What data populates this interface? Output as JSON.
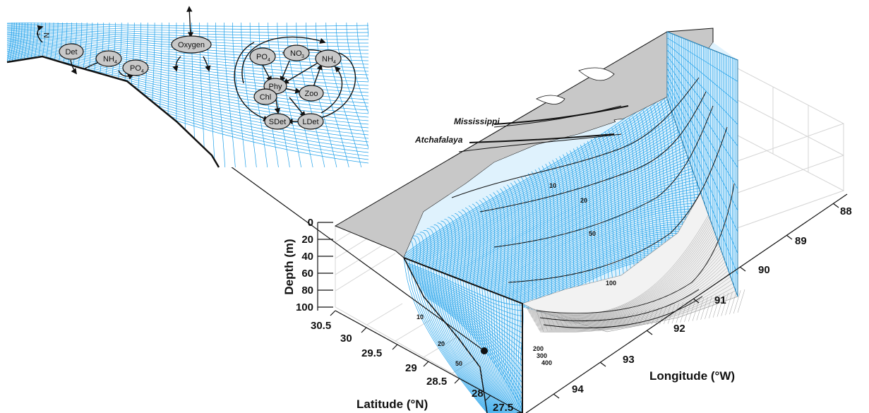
{
  "colors": {
    "grid": "#1ea0ea",
    "land": "#c8c8c8",
    "node_fill": "#c8c8c8",
    "black": "#111111",
    "box_grid": "#cfcfcf"
  },
  "inset": {
    "gas_label": "N",
    "gas_sub": "2",
    "nodes": {
      "det": "Det",
      "nh4_left": {
        "main": "NH",
        "sub": "4"
      },
      "po4_left": {
        "main": "PO",
        "sub": "4"
      },
      "oxygen": "Oxygen",
      "po4": {
        "main": "PO",
        "sub": "4"
      },
      "no3": {
        "main": "NO",
        "sub": "3"
      },
      "nh4": {
        "main": "NH",
        "sub": "4"
      },
      "phy": "Phy",
      "chl": "Chl",
      "zoo": "Zoo",
      "sdet": "SDet",
      "ldet": "LDet"
    }
  },
  "map": {
    "rivers": {
      "mississippi": "Mississippi",
      "atchafalaya": "Atchafalaya"
    },
    "contours_shelf": [
      "10",
      "20",
      "50",
      "100"
    ],
    "contours_deep": [
      "200",
      "300",
      "400"
    ],
    "contours_section": [
      "10",
      "20",
      "50"
    ]
  },
  "axes": {
    "depth": {
      "title": "Depth (m)",
      "ticks": [
        "0",
        "20",
        "40",
        "60",
        "80",
        "100"
      ]
    },
    "latitude": {
      "title": "Latitude (°N)",
      "ticks": [
        "30.5",
        "30",
        "29.5",
        "29",
        "28.5",
        "28",
        "27.5"
      ]
    },
    "longitude": {
      "title": "Longitude (°W)",
      "ticks": [
        "88",
        "89",
        "90",
        "91",
        "92",
        "93",
        "94"
      ]
    }
  }
}
